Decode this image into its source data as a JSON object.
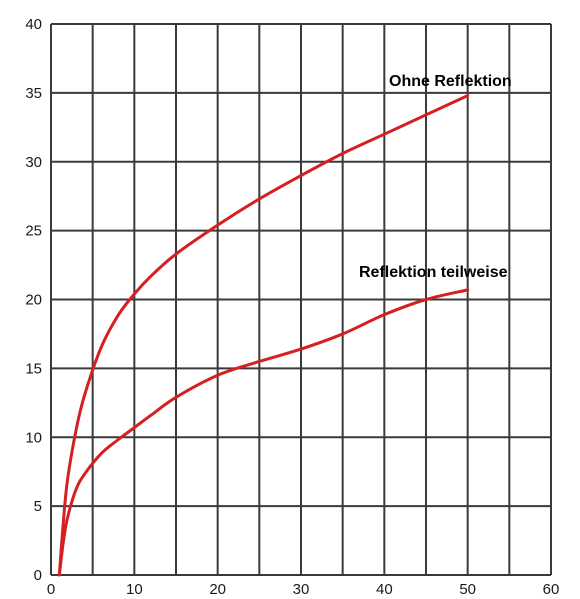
{
  "chart_data": {
    "type": "line",
    "title": "",
    "xlabel": "",
    "ylabel": "",
    "xlim": [
      0,
      60
    ],
    "ylim": [
      0,
      40
    ],
    "grid": true,
    "xticks": [
      0,
      10,
      20,
      30,
      40,
      50,
      60
    ],
    "yticks": [
      0,
      5,
      10,
      15,
      20,
      25,
      30,
      35,
      40
    ],
    "xtick_labels": [
      "0",
      "10",
      "20",
      "30",
      "40",
      "50",
      "60"
    ],
    "ytick_labels": [
      "0",
      "5",
      "10",
      "15",
      "20",
      "25",
      "30",
      "35",
      "40"
    ],
    "series": [
      {
        "name": "Ohne Reflektion",
        "color": "#d42020",
        "x": [
          1,
          1.5,
          2,
          3,
          4,
          6,
          8,
          10,
          12,
          15,
          20,
          25,
          30,
          35,
          40,
          45,
          50
        ],
        "y": [
          0,
          4,
          7,
          10.5,
          13,
          16.5,
          18.8,
          20.4,
          21.7,
          23.3,
          25.4,
          27.3,
          29,
          30.6,
          32,
          33.4,
          34.8
        ]
      },
      {
        "name": "Reflektion teilweise",
        "color": "#d42020",
        "x": [
          1,
          1.5,
          2,
          3,
          4,
          6,
          8,
          10,
          12,
          15,
          20,
          25,
          30,
          35,
          40,
          45,
          50
        ],
        "y": [
          0,
          2.5,
          4.2,
          6.2,
          7.3,
          8.8,
          9.8,
          10.7,
          11.6,
          12.9,
          14.5,
          15.5,
          16.4,
          17.5,
          18.9,
          20,
          20.7
        ]
      }
    ]
  }
}
